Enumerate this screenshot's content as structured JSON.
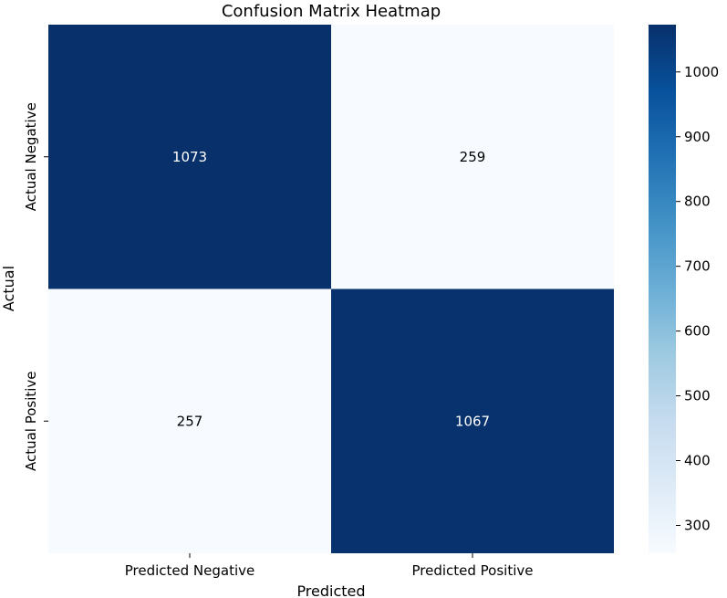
{
  "chart_data": {
    "type": "heatmap",
    "title": "Confusion Matrix Heatmap",
    "xlabel": "Predicted",
    "ylabel": "Actual",
    "x_categories": [
      "Predicted Negative",
      "Predicted Positive"
    ],
    "y_categories": [
      "Actual Negative",
      "Actual Positive"
    ],
    "values": [
      [
        1073,
        259
      ],
      [
        257,
        1067
      ]
    ],
    "colormap": "Blues",
    "colorbar": {
      "range": [
        257,
        1073
      ],
      "ticks": [
        "300",
        "400",
        "500",
        "600",
        "700",
        "800",
        "900",
        "1000"
      ]
    },
    "colors": {
      "low": "#f7fbff",
      "high": "#08306b",
      "text_on_dark": "#ffffff",
      "text_on_light": "#000000"
    }
  }
}
